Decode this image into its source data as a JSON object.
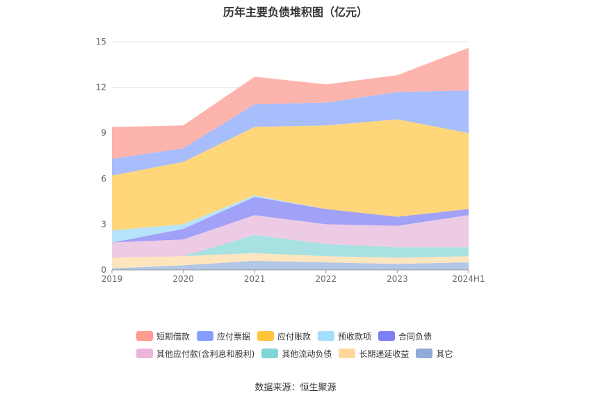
{
  "chart_data": {
    "type": "area",
    "title": "历年主要负债堆积图（亿元）",
    "source": "数据来源：恒生聚源",
    "categories": [
      "2019",
      "2020",
      "2021",
      "2022",
      "2023",
      "2024H1"
    ],
    "ylim": [
      0,
      15
    ],
    "yticks": [
      "0",
      "3",
      "6",
      "9",
      "12",
      "15"
    ],
    "grid": true,
    "legend_position": "bottom",
    "stack_order_bottom_to_top": [
      "其它",
      "长期递延收益",
      "其他流动负债",
      "其他应付款(含利息和股利)",
      "合同负债",
      "预收款项",
      "应付账款",
      "应付票据",
      "短期借款"
    ],
    "series": [
      {
        "name": "短期借款",
        "color": "#fdb4ad",
        "values": [
          2.1,
          1.5,
          1.8,
          1.2,
          1.1,
          2.8
        ]
      },
      {
        "name": "应付票据",
        "color": "#a7bdfc",
        "values": [
          1.1,
          0.9,
          1.5,
          1.5,
          1.8,
          2.8
        ]
      },
      {
        "name": "应付账款",
        "color": "#ffd67a",
        "values": [
          3.6,
          4.1,
          4.5,
          5.5,
          6.4,
          5.0
        ]
      },
      {
        "name": "预收款项",
        "color": "#b6e4fd",
        "values": [
          0.8,
          0.3,
          0.1,
          0.0,
          0.0,
          0.0
        ]
      },
      {
        "name": "合同负债",
        "color": "#a1a1f7",
        "values": [
          0.0,
          0.7,
          1.2,
          1.0,
          0.6,
          0.4
        ]
      },
      {
        "name": "其他应付款(含利息和股利)",
        "color": "#eecbe4",
        "values": [
          1.0,
          1.1,
          1.3,
          1.3,
          1.4,
          2.1
        ]
      },
      {
        "name": "其他流动负债",
        "color": "#a8e1e1",
        "values": [
          0.0,
          0.0,
          1.2,
          0.8,
          0.7,
          0.6
        ]
      },
      {
        "name": "长期递延收益",
        "color": "#fde5be",
        "values": [
          0.7,
          0.6,
          0.5,
          0.4,
          0.4,
          0.4
        ]
      },
      {
        "name": "其它",
        "color": "#b3c7e6",
        "values": [
          0.1,
          0.3,
          0.6,
          0.5,
          0.4,
          0.5
        ]
      }
    ],
    "legend_colors": {
      "短期借款": "#fe9c91",
      "应付票据": "#859ffb",
      "应付账款": "#ffc53f",
      "预收款项": "#a1dffd",
      "合同负债": "#7f7ff4",
      "其他应付款(含利息和股利)": "#ebb5dc",
      "其他流动负债": "#7fd6d5",
      "长期递延收益": "#fed89b",
      "其它": "#90abd9"
    }
  }
}
